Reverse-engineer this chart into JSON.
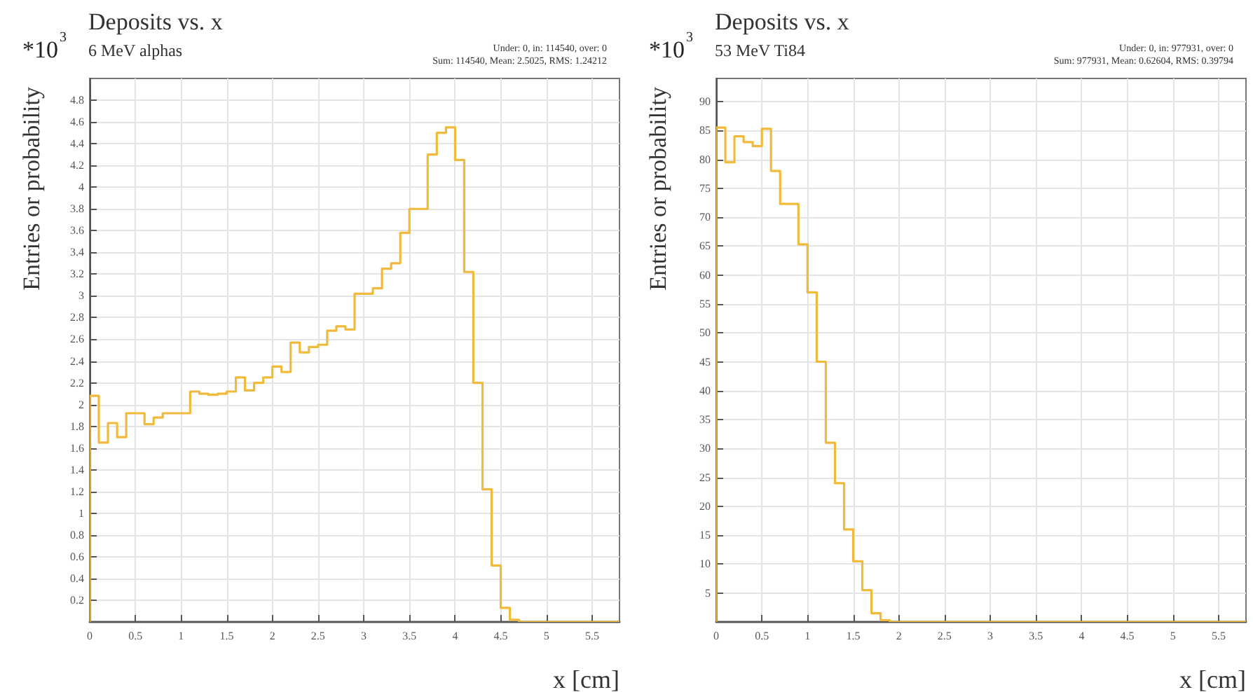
{
  "chart_data": [
    {
      "type": "histogram",
      "title": "Deposits vs. x",
      "subtitle": "6 MeV alphas",
      "xlabel": "x [cm]",
      "ylabel": "Entries or probability",
      "annotations": [
        "*10$^{3}$",
        "Under: 0, in: 114540, over: 0",
        "Sum: 114540, Mean: 2.5025, RMS: 1.24212"
      ],
      "bins": [
        0,
        0.1,
        0.2,
        0.3,
        0.4,
        0.5,
        0.6,
        0.7,
        0.8,
        0.9,
        1,
        1.1,
        1.2,
        1.3,
        1.4,
        1.5,
        1.6,
        1.7,
        1.8,
        1.9,
        2,
        2.1,
        2.2,
        2.3,
        2.4,
        2.5,
        2.6,
        2.7,
        2.8,
        2.9,
        3,
        3.1,
        3.2,
        3.3,
        3.4,
        3.5,
        3.6,
        3.7,
        3.8,
        3.9,
        4,
        4.1,
        4.2,
        4.3,
        4.4,
        4.5,
        4.6,
        4.7,
        4.8,
        4.9,
        5,
        5.1,
        5.2,
        5.3,
        5.4,
        5.5,
        5.6,
        5.7,
        5.8
      ],
      "values": [
        2.08,
        1.65,
        1.83,
        1.7,
        1.92,
        1.92,
        1.82,
        1.88,
        1.92,
        1.92,
        1.92,
        2.12,
        2.1,
        2.09,
        2.1,
        2.12,
        2.25,
        2.13,
        2.2,
        2.25,
        2.35,
        2.3,
        2.57,
        2.48,
        2.53,
        2.55,
        2.68,
        2.72,
        2.69,
        3.02,
        3.02,
        3.07,
        3.25,
        3.3,
        3.58,
        3.8,
        3.8,
        4.3,
        4.5,
        4.55,
        4.25,
        3.22,
        2.2,
        1.22,
        0.52,
        0.13,
        0.02,
        0,
        0,
        0,
        0,
        0,
        0,
        0,
        0,
        0,
        0,
        0
      ],
      "color": "#f2ba3a",
      "xlim": [
        0,
        5.8
      ],
      "xticks": [
        0,
        0.5,
        1,
        1.5,
        2,
        2.5,
        3,
        3.5,
        4,
        4.5,
        5,
        5.5
      ],
      "ylim": [
        0,
        5
      ],
      "yticks": [
        0.2,
        0.4,
        0.6,
        0.8,
        1,
        1.2,
        1.4,
        1.6,
        1.8,
        2,
        2.2,
        2.4,
        2.6,
        2.8,
        3,
        3.2,
        3.4,
        3.6,
        3.8,
        4,
        4.2,
        4.4,
        4.6,
        4.8
      ],
      "grid": true
    },
    {
      "type": "histogram",
      "title": "Deposits vs. x",
      "subtitle": "53 MeV Ti84",
      "xlabel": "x [cm]",
      "ylabel": "Entries or probability",
      "annotations": [
        "*10$^{3}$",
        "Under: 0, in: 977931, over: 0",
        "Sum: 977931, Mean: 0.62604, RMS: 0.39794"
      ],
      "bins": [
        0,
        0.1,
        0.2,
        0.3,
        0.4,
        0.5,
        0.6,
        0.7,
        0.8,
        0.9,
        1,
        1.1,
        1.2,
        1.3,
        1.4,
        1.5,
        1.6,
        1.7,
        1.8,
        1.9,
        2,
        2.1,
        2.2,
        2.3,
        2.4,
        2.5,
        2.6,
        2.7,
        2.8,
        2.9,
        3,
        3.1,
        3.2,
        3.3,
        3.4,
        3.5,
        3.6,
        3.7,
        3.8,
        3.9,
        4,
        4.1,
        4.2,
        4.3,
        4.4,
        4.5,
        4.6,
        4.7,
        4.8,
        4.9,
        5,
        5.1,
        5.2,
        5.3,
        5.4,
        5.5,
        5.6,
        5.7,
        5.8
      ],
      "values": [
        85.5,
        79.5,
        84,
        83,
        82.3,
        85.3,
        78,
        72.3,
        72.3,
        65.3,
        57,
        45,
        31,
        24,
        16,
        10.5,
        5.5,
        1.5,
        0.3,
        0,
        0,
        0,
        0,
        0,
        0,
        0,
        0,
        0,
        0,
        0,
        0,
        0,
        0,
        0,
        0,
        0,
        0,
        0,
        0,
        0,
        0,
        0,
        0,
        0,
        0,
        0,
        0,
        0,
        0,
        0,
        0,
        0,
        0,
        0,
        0,
        0,
        0,
        0
      ],
      "color": "#f2ba3a",
      "xlim": [
        0,
        5.8
      ],
      "xticks": [
        0,
        0.5,
        1,
        1.5,
        2,
        2.5,
        3,
        3.5,
        4,
        4.5,
        5,
        5.5
      ],
      "ylim": [
        0,
        94
      ],
      "yticks": [
        5,
        10,
        15,
        20,
        25,
        30,
        35,
        40,
        45,
        50,
        55,
        60,
        65,
        70,
        75,
        80,
        85,
        90
      ],
      "grid": true
    }
  ]
}
